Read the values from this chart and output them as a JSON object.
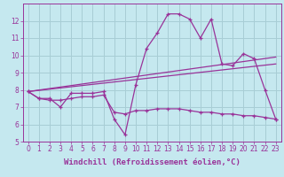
{
  "xlabel": "Windchill (Refroidissement éolien,°C)",
  "xlim": [
    -0.5,
    23.5
  ],
  "ylim": [
    5,
    13
  ],
  "yticks": [
    5,
    6,
    7,
    8,
    9,
    10,
    11,
    12
  ],
  "xticks": [
    0,
    1,
    2,
    3,
    4,
    5,
    6,
    7,
    8,
    9,
    10,
    11,
    12,
    13,
    14,
    15,
    16,
    17,
    18,
    19,
    20,
    21,
    22,
    23
  ],
  "bg_color": "#c5e8ef",
  "grid_color": "#a8cdd5",
  "line_color": "#993399",
  "line1_x": [
    0,
    1,
    2,
    3,
    4,
    5,
    6,
    7,
    8,
    9,
    10,
    11,
    12,
    13,
    14,
    15,
    16,
    17,
    18,
    19,
    20,
    21,
    22,
    23
  ],
  "line1_y": [
    7.9,
    7.5,
    7.5,
    7.0,
    7.8,
    7.8,
    7.8,
    7.9,
    6.3,
    5.4,
    8.3,
    10.4,
    11.3,
    12.4,
    12.4,
    12.1,
    11.0,
    12.1,
    9.5,
    9.4,
    10.1,
    9.8,
    8.0,
    6.3
  ],
  "line2_x": [
    0,
    23
  ],
  "line2_y": [
    7.9,
    9.9
  ],
  "line3_x": [
    0,
    23
  ],
  "line3_y": [
    7.9,
    9.5
  ],
  "line4_x": [
    0,
    1,
    2,
    3,
    4,
    5,
    6,
    7,
    8,
    9,
    10,
    11,
    12,
    13,
    14,
    15,
    16,
    17,
    18,
    19,
    20,
    21,
    22,
    23
  ],
  "line4_y": [
    7.9,
    7.5,
    7.4,
    7.4,
    7.5,
    7.6,
    7.6,
    7.7,
    6.7,
    6.6,
    6.8,
    6.8,
    6.9,
    6.9,
    6.9,
    6.8,
    6.7,
    6.7,
    6.6,
    6.6,
    6.5,
    6.5,
    6.4,
    6.3
  ],
  "marker": "+",
  "marker_size": 3,
  "line_width": 0.9,
  "xlabel_fontsize": 6.5,
  "tick_fontsize": 5.5,
  "line_color2": "#993399"
}
